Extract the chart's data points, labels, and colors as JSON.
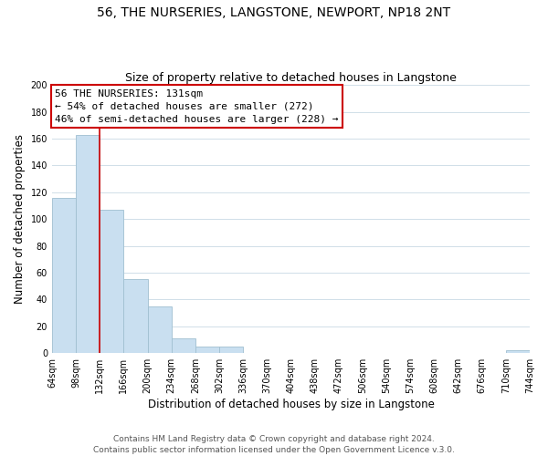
{
  "title": "56, THE NURSERIES, LANGSTONE, NEWPORT, NP18 2NT",
  "subtitle": "Size of property relative to detached houses in Langstone",
  "xlabel": "Distribution of detached houses by size in Langstone",
  "ylabel": "Number of detached properties",
  "bar_edges": [
    64,
    98,
    132,
    166,
    200,
    234,
    268,
    302,
    336,
    370,
    404,
    438,
    472,
    506,
    540,
    574,
    608,
    642,
    676,
    710,
    744
  ],
  "bar_heights": [
    116,
    163,
    107,
    55,
    35,
    11,
    5,
    5,
    0,
    0,
    0,
    0,
    0,
    0,
    0,
    0,
    0,
    0,
    0,
    2
  ],
  "bar_color": "#c9dff0",
  "bar_edge_color": "#a0bfd0",
  "ylim": [
    0,
    200
  ],
  "yticks": [
    0,
    20,
    40,
    60,
    80,
    100,
    120,
    140,
    160,
    180,
    200
  ],
  "property_line_x": 132,
  "property_line_color": "#cc0000",
  "annotation_line1": "56 THE NURSERIES: 131sqm",
  "annotation_line2": "← 54% of detached houses are smaller (272)",
  "annotation_line3": "46% of semi-detached houses are larger (228) →",
  "annotation_box_color": "#ffffff",
  "annotation_box_edge_color": "#cc0000",
  "footer_line1": "Contains HM Land Registry data © Crown copyright and database right 2024.",
  "footer_line2": "Contains public sector information licensed under the Open Government Licence v.3.0.",
  "background_color": "#ffffff",
  "grid_color": "#d0dfe8",
  "title_fontsize": 10,
  "subtitle_fontsize": 9,
  "axis_label_fontsize": 8.5,
  "tick_fontsize": 7,
  "annotation_fontsize": 8,
  "footer_fontsize": 6.5
}
